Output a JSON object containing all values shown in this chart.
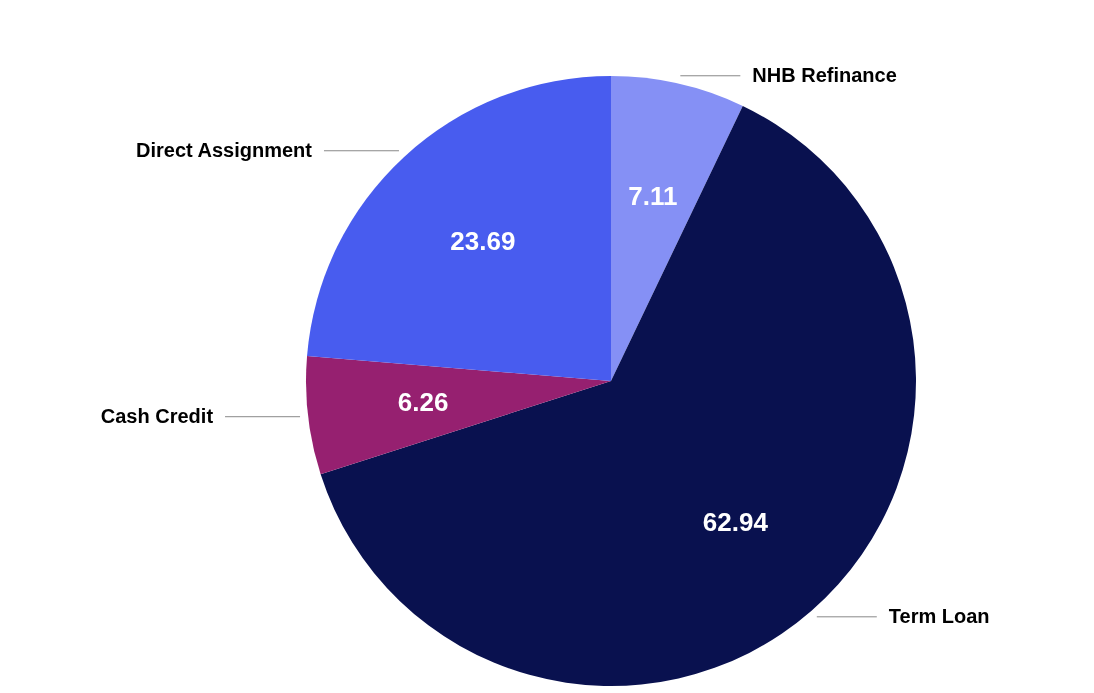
{
  "chart_data": {
    "type": "pie",
    "categories": [
      "NHB Refinance",
      "Term Loan",
      "Cash Credit",
      "Direct Assignment"
    ],
    "values": [
      7.11,
      62.94,
      6.26,
      23.69
    ],
    "colors": [
      "#8590f5",
      "#09114f",
      "#962070",
      "#485cef"
    ],
    "data_labels": true
  }
}
